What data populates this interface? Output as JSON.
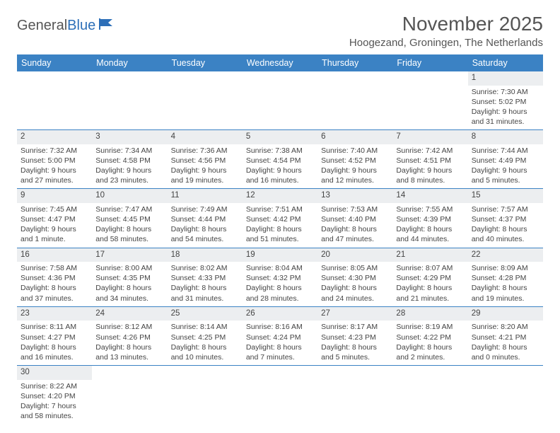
{
  "logo": {
    "text1": "General",
    "text2": "Blue"
  },
  "title": "November 2025",
  "location": "Hoogezand, Groningen, The Netherlands",
  "colors": {
    "header_bg": "#3b82c4",
    "header_text": "#ffffff",
    "daynum_bg": "#eceef0",
    "body_text": "#444444",
    "title_text": "#555555",
    "row_border": "#3b82c4",
    "background": "#ffffff",
    "logo_blue": "#2d6fb8"
  },
  "fonts": {
    "family": "Arial, Helvetica, sans-serif",
    "title_size_pt": 21,
    "location_size_pt": 11,
    "dayheader_size_pt": 9,
    "daynum_size_pt": 8.5,
    "body_size_pt": 8
  },
  "day_names": [
    "Sunday",
    "Monday",
    "Tuesday",
    "Wednesday",
    "Thursday",
    "Friday",
    "Saturday"
  ],
  "weeks": [
    [
      null,
      null,
      null,
      null,
      null,
      null,
      {
        "n": "1",
        "sr": "Sunrise: 7:30 AM",
        "ss": "Sunset: 5:02 PM",
        "dl": "Daylight: 9 hours and 31 minutes."
      }
    ],
    [
      {
        "n": "2",
        "sr": "Sunrise: 7:32 AM",
        "ss": "Sunset: 5:00 PM",
        "dl": "Daylight: 9 hours and 27 minutes."
      },
      {
        "n": "3",
        "sr": "Sunrise: 7:34 AM",
        "ss": "Sunset: 4:58 PM",
        "dl": "Daylight: 9 hours and 23 minutes."
      },
      {
        "n": "4",
        "sr": "Sunrise: 7:36 AM",
        "ss": "Sunset: 4:56 PM",
        "dl": "Daylight: 9 hours and 19 minutes."
      },
      {
        "n": "5",
        "sr": "Sunrise: 7:38 AM",
        "ss": "Sunset: 4:54 PM",
        "dl": "Daylight: 9 hours and 16 minutes."
      },
      {
        "n": "6",
        "sr": "Sunrise: 7:40 AM",
        "ss": "Sunset: 4:52 PM",
        "dl": "Daylight: 9 hours and 12 minutes."
      },
      {
        "n": "7",
        "sr": "Sunrise: 7:42 AM",
        "ss": "Sunset: 4:51 PM",
        "dl": "Daylight: 9 hours and 8 minutes."
      },
      {
        "n": "8",
        "sr": "Sunrise: 7:44 AM",
        "ss": "Sunset: 4:49 PM",
        "dl": "Daylight: 9 hours and 5 minutes."
      }
    ],
    [
      {
        "n": "9",
        "sr": "Sunrise: 7:45 AM",
        "ss": "Sunset: 4:47 PM",
        "dl": "Daylight: 9 hours and 1 minute."
      },
      {
        "n": "10",
        "sr": "Sunrise: 7:47 AM",
        "ss": "Sunset: 4:45 PM",
        "dl": "Daylight: 8 hours and 58 minutes."
      },
      {
        "n": "11",
        "sr": "Sunrise: 7:49 AM",
        "ss": "Sunset: 4:44 PM",
        "dl": "Daylight: 8 hours and 54 minutes."
      },
      {
        "n": "12",
        "sr": "Sunrise: 7:51 AM",
        "ss": "Sunset: 4:42 PM",
        "dl": "Daylight: 8 hours and 51 minutes."
      },
      {
        "n": "13",
        "sr": "Sunrise: 7:53 AM",
        "ss": "Sunset: 4:40 PM",
        "dl": "Daylight: 8 hours and 47 minutes."
      },
      {
        "n": "14",
        "sr": "Sunrise: 7:55 AM",
        "ss": "Sunset: 4:39 PM",
        "dl": "Daylight: 8 hours and 44 minutes."
      },
      {
        "n": "15",
        "sr": "Sunrise: 7:57 AM",
        "ss": "Sunset: 4:37 PM",
        "dl": "Daylight: 8 hours and 40 minutes."
      }
    ],
    [
      {
        "n": "16",
        "sr": "Sunrise: 7:58 AM",
        "ss": "Sunset: 4:36 PM",
        "dl": "Daylight: 8 hours and 37 minutes."
      },
      {
        "n": "17",
        "sr": "Sunrise: 8:00 AM",
        "ss": "Sunset: 4:35 PM",
        "dl": "Daylight: 8 hours and 34 minutes."
      },
      {
        "n": "18",
        "sr": "Sunrise: 8:02 AM",
        "ss": "Sunset: 4:33 PM",
        "dl": "Daylight: 8 hours and 31 minutes."
      },
      {
        "n": "19",
        "sr": "Sunrise: 8:04 AM",
        "ss": "Sunset: 4:32 PM",
        "dl": "Daylight: 8 hours and 28 minutes."
      },
      {
        "n": "20",
        "sr": "Sunrise: 8:05 AM",
        "ss": "Sunset: 4:30 PM",
        "dl": "Daylight: 8 hours and 24 minutes."
      },
      {
        "n": "21",
        "sr": "Sunrise: 8:07 AM",
        "ss": "Sunset: 4:29 PM",
        "dl": "Daylight: 8 hours and 21 minutes."
      },
      {
        "n": "22",
        "sr": "Sunrise: 8:09 AM",
        "ss": "Sunset: 4:28 PM",
        "dl": "Daylight: 8 hours and 19 minutes."
      }
    ],
    [
      {
        "n": "23",
        "sr": "Sunrise: 8:11 AM",
        "ss": "Sunset: 4:27 PM",
        "dl": "Daylight: 8 hours and 16 minutes."
      },
      {
        "n": "24",
        "sr": "Sunrise: 8:12 AM",
        "ss": "Sunset: 4:26 PM",
        "dl": "Daylight: 8 hours and 13 minutes."
      },
      {
        "n": "25",
        "sr": "Sunrise: 8:14 AM",
        "ss": "Sunset: 4:25 PM",
        "dl": "Daylight: 8 hours and 10 minutes."
      },
      {
        "n": "26",
        "sr": "Sunrise: 8:16 AM",
        "ss": "Sunset: 4:24 PM",
        "dl": "Daylight: 8 hours and 7 minutes."
      },
      {
        "n": "27",
        "sr": "Sunrise: 8:17 AM",
        "ss": "Sunset: 4:23 PM",
        "dl": "Daylight: 8 hours and 5 minutes."
      },
      {
        "n": "28",
        "sr": "Sunrise: 8:19 AM",
        "ss": "Sunset: 4:22 PM",
        "dl": "Daylight: 8 hours and 2 minutes."
      },
      {
        "n": "29",
        "sr": "Sunrise: 8:20 AM",
        "ss": "Sunset: 4:21 PM",
        "dl": "Daylight: 8 hours and 0 minutes."
      }
    ],
    [
      {
        "n": "30",
        "sr": "Sunrise: 8:22 AM",
        "ss": "Sunset: 4:20 PM",
        "dl": "Daylight: 7 hours and 58 minutes."
      },
      null,
      null,
      null,
      null,
      null,
      null
    ]
  ]
}
